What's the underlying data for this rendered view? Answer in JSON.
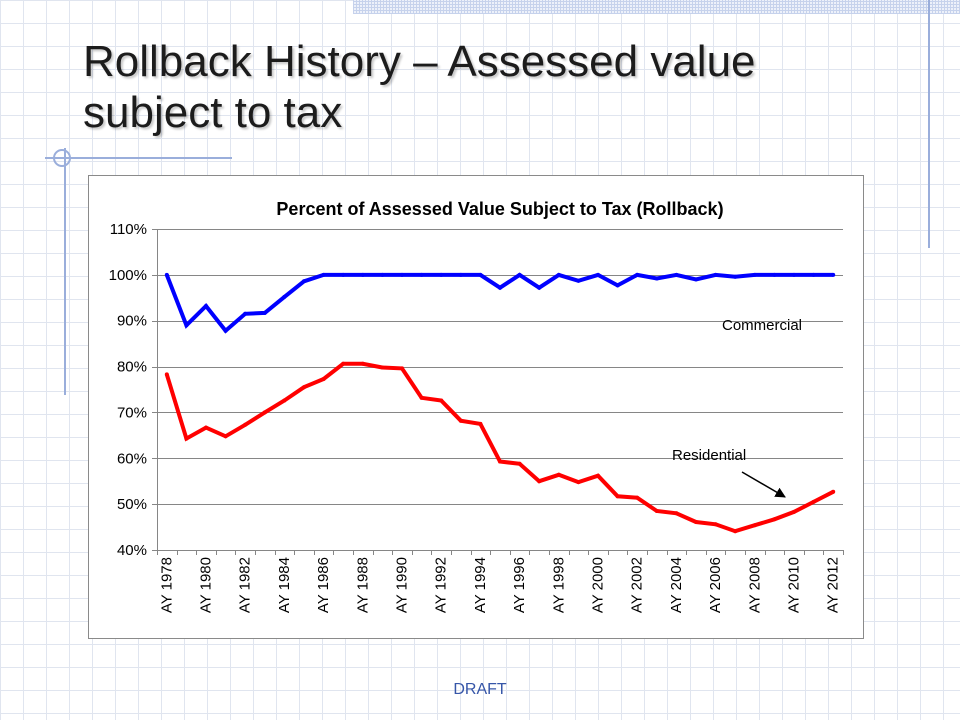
{
  "slide": {
    "title_lines": [
      "Rollback History – Assessed value",
      "subject to tax"
    ],
    "footer": "DRAFT"
  },
  "chart_data": {
    "type": "line",
    "title": "Percent of Assessed Value Subject to Tax (Rollback)",
    "x": [
      1978,
      1979,
      1980,
      1981,
      1982,
      1983,
      1984,
      1985,
      1986,
      1987,
      1988,
      1989,
      1990,
      1991,
      1992,
      1993,
      1994,
      1995,
      1996,
      1997,
      1998,
      1999,
      2000,
      2001,
      2002,
      2003,
      2004,
      2005,
      2006,
      2007,
      2008,
      2009,
      2010,
      2011,
      2012
    ],
    "xticks": [
      1978,
      1980,
      1982,
      1984,
      1986,
      1988,
      1990,
      1992,
      1994,
      1996,
      1998,
      2000,
      2002,
      2004,
      2006,
      2008,
      2010,
      2012
    ],
    "xtick_labels": [
      "AY 1978",
      "AY 1980",
      "AY 1982",
      "AY 1984",
      "AY 1986",
      "AY 1988",
      "AY 1990",
      "AY 1992",
      "AY 1994",
      "AY 1996",
      "AY 1998",
      "AY 2000",
      "AY 2002",
      "AY 2004",
      "AY 2006",
      "AY 2008",
      "AY 2010",
      "AY 2012"
    ],
    "ylim": [
      40,
      110
    ],
    "yticks": [
      40,
      50,
      60,
      70,
      80,
      90,
      100,
      110
    ],
    "ytick_labels": [
      "40%",
      "50%",
      "60%",
      "70%",
      "80%",
      "90%",
      "100%",
      "110%"
    ],
    "grid": true,
    "series": [
      {
        "name": "Commercial",
        "color": "#0000ff",
        "values": [
          100,
          89,
          93.2,
          87.8,
          91.5,
          91.7,
          95.2,
          98.6,
          100,
          100,
          100,
          100,
          100,
          100,
          100,
          100,
          100,
          97.2,
          100,
          97.2,
          100,
          98.7,
          100,
          97.7,
          100,
          99.2,
          100,
          99,
          100,
          99.6,
          100,
          100,
          100,
          100,
          100
        ]
      },
      {
        "name": "Residential",
        "color": "#ff0000",
        "values": [
          78.3,
          64.3,
          66.7,
          64.8,
          67.3,
          70,
          72.6,
          75.5,
          77.3,
          80.6,
          80.6,
          79.8,
          79.6,
          73.2,
          72.6,
          68.2,
          67.5,
          59.3,
          58.8,
          55,
          56.4,
          54.8,
          56.2,
          51.7,
          51.4,
          48.5,
          48,
          46.1,
          45.6,
          44.1,
          45.4,
          46.7,
          48.3,
          50.5,
          52.7
        ]
      }
    ]
  }
}
